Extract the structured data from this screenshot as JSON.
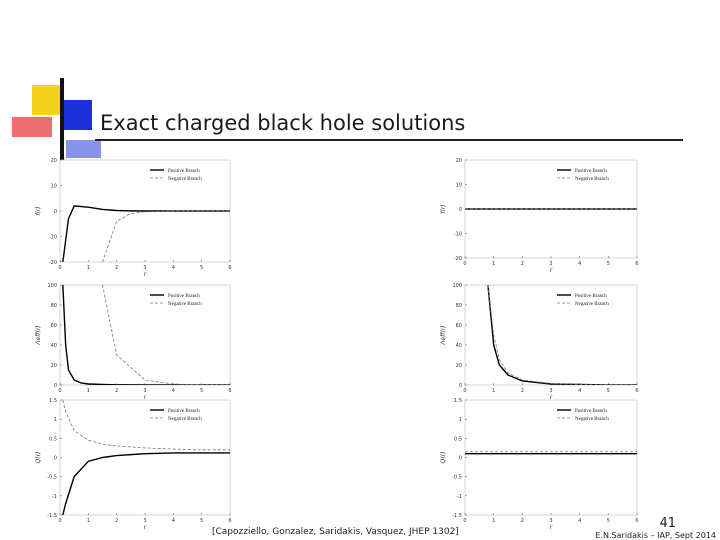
{
  "slide": {
    "title": "Exact charged black hole solutions",
    "citation": "[Capozziello, Gonzalez, Saridakis, Vasquez, JHEP 1302]",
    "page": "41",
    "footer": "E.N.Saridakis – IAP, Sept 2014"
  },
  "chart_data": [
    {
      "type": "line",
      "xlabel": "r",
      "ylabel": "f(r)",
      "xlim": [
        0,
        6
      ],
      "ylim": [
        -20,
        20
      ],
      "xticks": [
        0,
        1,
        2,
        3,
        4,
        5,
        6
      ],
      "yticks": [
        -20,
        -10,
        0,
        10,
        20
      ],
      "legend": "upper right",
      "x": [
        0.1,
        0.3,
        0.5,
        1,
        1.5,
        2,
        2.5,
        3,
        4,
        5,
        6
      ],
      "series": [
        {
          "name": "Positive Branch",
          "color": "#000000",
          "style": "solid",
          "values": [
            -20,
            -3,
            2,
            1.5,
            0.6,
            0.2,
            0.05,
            0,
            0,
            0,
            0
          ]
        },
        {
          "name": "Negative Branch",
          "color": "#777777",
          "style": "dashed",
          "values": [
            null,
            null,
            null,
            null,
            -20,
            -4,
            -1,
            -0.3,
            0,
            0,
            0
          ]
        }
      ]
    },
    {
      "type": "line",
      "xlabel": "r",
      "ylabel": "f(r)",
      "xlim": [
        0,
        6
      ],
      "ylim": [
        -20,
        20
      ],
      "xticks": [
        0,
        1,
        2,
        3,
        4,
        5,
        6
      ],
      "yticks": [
        -20,
        -10,
        0,
        10,
        20
      ],
      "legend": "upper right",
      "x": [
        0,
        6
      ],
      "series": [
        {
          "name": "Positive Branch",
          "color": "#000000",
          "style": "solid",
          "values": [
            0,
            0
          ]
        },
        {
          "name": "Negative Branch",
          "color": "#777777",
          "style": "dashed",
          "values": [
            0,
            0
          ]
        }
      ]
    },
    {
      "type": "line",
      "xlabel": "r",
      "ylabel": "Λeff(r)",
      "xlim": [
        0,
        6
      ],
      "ylim": [
        0,
        100
      ],
      "xticks": [
        0,
        1,
        2,
        3,
        4,
        5,
        6
      ],
      "yticks": [
        0,
        20,
        40,
        60,
        80,
        100
      ],
      "legend": "upper right",
      "x": [
        0.1,
        0.2,
        0.3,
        0.5,
        0.75,
        1,
        1.5,
        2,
        3,
        4,
        5,
        6
      ],
      "series": [
        {
          "name": "Positive Branch",
          "color": "#000000",
          "style": "solid",
          "values": [
            100,
            40,
            15,
            5,
            2,
            1,
            0.5,
            0.2,
            0,
            0,
            0,
            0
          ]
        },
        {
          "name": "Negative Branch",
          "color": "#777777",
          "style": "dashed",
          "values": [
            null,
            null,
            null,
            null,
            null,
            null,
            100,
            30,
            5,
            1,
            0,
            0
          ]
        }
      ]
    },
    {
      "type": "line",
      "xlabel": "r",
      "ylabel": "Λeff(r)",
      "xlim": [
        0,
        6
      ],
      "ylim": [
        0,
        100
      ],
      "xticks": [
        0,
        1,
        2,
        3,
        4,
        5,
        6
      ],
      "yticks": [
        0,
        20,
        40,
        60,
        80,
        100
      ],
      "legend": "upper right",
      "x": [
        0.8,
        1,
        1.2,
        1.5,
        2,
        3,
        4,
        5,
        6
      ],
      "series": [
        {
          "name": "Positive Branch",
          "color": "#000000",
          "style": "solid",
          "values": [
            100,
            40,
            20,
            10,
            4,
            1,
            0.5,
            0,
            0
          ]
        },
        {
          "name": "Negative Branch",
          "color": "#777777",
          "style": "dashed",
          "values": [
            100,
            50,
            25,
            12,
            5,
            1.5,
            0.5,
            0,
            0
          ]
        }
      ]
    },
    {
      "type": "line",
      "xlabel": "r",
      "ylabel": "Q(r)",
      "xlim": [
        0,
        6
      ],
      "ylim": [
        -1.5,
        1.5
      ],
      "xticks": [
        0,
        1,
        2,
        3,
        4,
        5,
        6
      ],
      "yticks": [
        -1.5,
        -1,
        -0.5,
        0,
        0.5,
        1,
        1.5
      ],
      "legend": "upper right",
      "x": [
        0.1,
        0.2,
        0.5,
        1,
        1.5,
        2,
        3,
        4,
        5,
        6
      ],
      "series": [
        {
          "name": "Positive Branch",
          "color": "#000000",
          "style": "solid",
          "values": [
            -1.5,
            -1.2,
            -0.5,
            -0.1,
            0,
            0.05,
            0.1,
            0.12,
            0.12,
            0.12
          ]
        },
        {
          "name": "Negative Branch",
          "color": "#777777",
          "style": "dashed",
          "values": [
            1.5,
            1.2,
            0.7,
            0.45,
            0.35,
            0.3,
            0.25,
            0.22,
            0.2,
            0.2
          ]
        }
      ]
    },
    {
      "type": "line",
      "xlabel": "r",
      "ylabel": "Q(r)",
      "xlim": [
        0,
        6
      ],
      "ylim": [
        -1.5,
        1.5
      ],
      "xticks": [
        0,
        1,
        2,
        3,
        4,
        5,
        6
      ],
      "yticks": [
        -1.5,
        -1,
        -0.5,
        0,
        0.5,
        1,
        1.5
      ],
      "legend": "upper right",
      "x": [
        0,
        6
      ],
      "series": [
        {
          "name": "Positive Branch",
          "color": "#000000",
          "style": "solid",
          "values": [
            0.1,
            0.1
          ]
        },
        {
          "name": "Negative Branch",
          "color": "#777777",
          "style": "dashed",
          "values": [
            0.15,
            0.15
          ]
        }
      ]
    }
  ]
}
